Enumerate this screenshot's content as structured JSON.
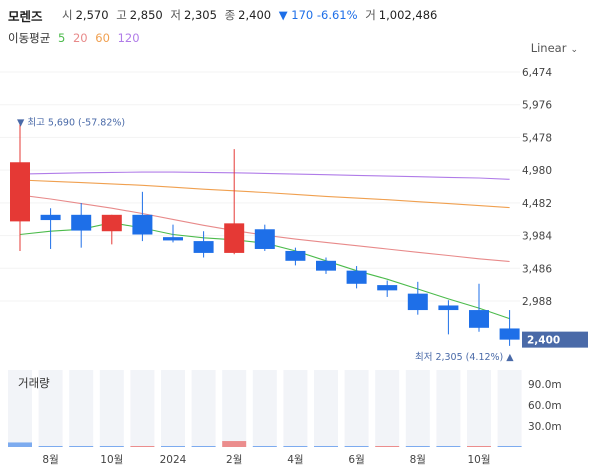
{
  "header": {
    "name": "모렌즈",
    "open_label": "시",
    "open": "2,570",
    "high_label": "고",
    "high": "2,850",
    "low_label": "저",
    "low": "2,305",
    "close_label": "종",
    "close": "2,400",
    "change": "▼ 170 -6.61%",
    "volume_label": "거",
    "volume": "1,002,486"
  },
  "ma_legend": {
    "label": "이동평균",
    "items": [
      "5",
      "20",
      "60",
      "120"
    ]
  },
  "scale_mode": "Linear",
  "colors": {
    "up": "#e53935",
    "down": "#1e6fe8",
    "ma5": "#4cbb4c",
    "ma20": "#e88a8a",
    "ma60": "#f0a050",
    "ma120": "#b07ce8",
    "price_tag": "#4a6aa8",
    "volume_bar": "#f2f4f8"
  },
  "chart_data": {
    "type": "candlestick",
    "ylim": [
      2305,
      6500
    ],
    "y_ticks": [
      "6,474",
      "5,976",
      "5,478",
      "4,980",
      "4,482",
      "3,984",
      "3,486",
      "2,988"
    ],
    "candles": [
      {
        "o": 4200,
        "h": 5690,
        "l": 3750,
        "c": 5100
      },
      {
        "o": 4300,
        "h": 4400,
        "l": 3780,
        "c": 4220
      },
      {
        "o": 4300,
        "h": 4480,
        "l": 3800,
        "c": 4060
      },
      {
        "o": 4050,
        "h": 4300,
        "l": 3850,
        "c": 4300
      },
      {
        "o": 4300,
        "h": 4650,
        "l": 3900,
        "c": 4000
      },
      {
        "o": 3960,
        "h": 4150,
        "l": 3880,
        "c": 3910
      },
      {
        "o": 3900,
        "h": 4050,
        "l": 3650,
        "c": 3720
      },
      {
        "o": 3720,
        "h": 5300,
        "l": 3700,
        "c": 4170
      },
      {
        "o": 4080,
        "h": 4150,
        "l": 3750,
        "c": 3780
      },
      {
        "o": 3750,
        "h": 3800,
        "l": 3530,
        "c": 3600
      },
      {
        "o": 3600,
        "h": 3650,
        "l": 3400,
        "c": 3450
      },
      {
        "o": 3450,
        "h": 3520,
        "l": 3180,
        "c": 3250
      },
      {
        "o": 3230,
        "h": 3300,
        "l": 3050,
        "c": 3150
      },
      {
        "o": 3100,
        "h": 3280,
        "l": 2780,
        "c": 2850
      },
      {
        "o": 2920,
        "h": 3000,
        "l": 2480,
        "c": 2850
      },
      {
        "o": 2850,
        "h": 3250,
        "l": 2520,
        "c": 2580
      },
      {
        "o": 2570,
        "h": 2850,
        "l": 2305,
        "c": 2400
      }
    ],
    "ma5": [
      4000,
      4050,
      4080,
      4180,
      4100,
      4000,
      3950,
      3920,
      3870,
      3750,
      3600,
      3450,
      3320,
      3170,
      3020,
      2880,
      2720
    ],
    "ma20": [
      4600,
      4540,
      4470,
      4400,
      4320,
      4230,
      4140,
      4060,
      3990,
      3930,
      3880,
      3830,
      3780,
      3730,
      3680,
      3630,
      3590
    ],
    "ma60": [
      4830,
      4810,
      4790,
      4770,
      4750,
      4720,
      4690,
      4665,
      4640,
      4610,
      4580,
      4555,
      4530,
      4500,
      4470,
      4440,
      4410
    ],
    "ma120": [
      4920,
      4930,
      4940,
      4945,
      4950,
      4950,
      4945,
      4940,
      4930,
      4920,
      4910,
      4900,
      4890,
      4880,
      4870,
      4860,
      4840
    ],
    "volume": {
      "title": "거래량",
      "ylim": [
        0,
        110
      ],
      "y_ticks": [
        "90.0m",
        "60.0m",
        "30.0m"
      ],
      "values": [
        6.5,
        0.8,
        0.5,
        0.4,
        1.2,
        0.5,
        0.6,
        8.5,
        1.0,
        0.5,
        0.4,
        0.5,
        0.8,
        1.0,
        0.8,
        1.0,
        1.0
      ],
      "colors": [
        "down",
        "down",
        "down",
        "down",
        "up",
        "down",
        "down",
        "up",
        "down",
        "down",
        "down",
        "down",
        "up",
        "down",
        "down",
        "up",
        "down"
      ]
    },
    "x_labels": [
      {
        "index": 1,
        "text": "8월"
      },
      {
        "index": 3,
        "text": "10월"
      },
      {
        "index": 5,
        "text": "2024"
      },
      {
        "index": 7,
        "text": "2월"
      },
      {
        "index": 9,
        "text": "4월"
      },
      {
        "index": 11,
        "text": "6월"
      },
      {
        "index": 13,
        "text": "8월"
      },
      {
        "index": 15,
        "text": "10월"
      }
    ],
    "high_marker": {
      "index": 0,
      "value": 5690,
      "text": "최고 5,690 (-57.82%)"
    },
    "low_marker": {
      "index": 16,
      "value": 2305,
      "text": "최저 2,305 (4.12%)"
    },
    "last_price": {
      "value": 2400,
      "text": "2,400"
    }
  }
}
